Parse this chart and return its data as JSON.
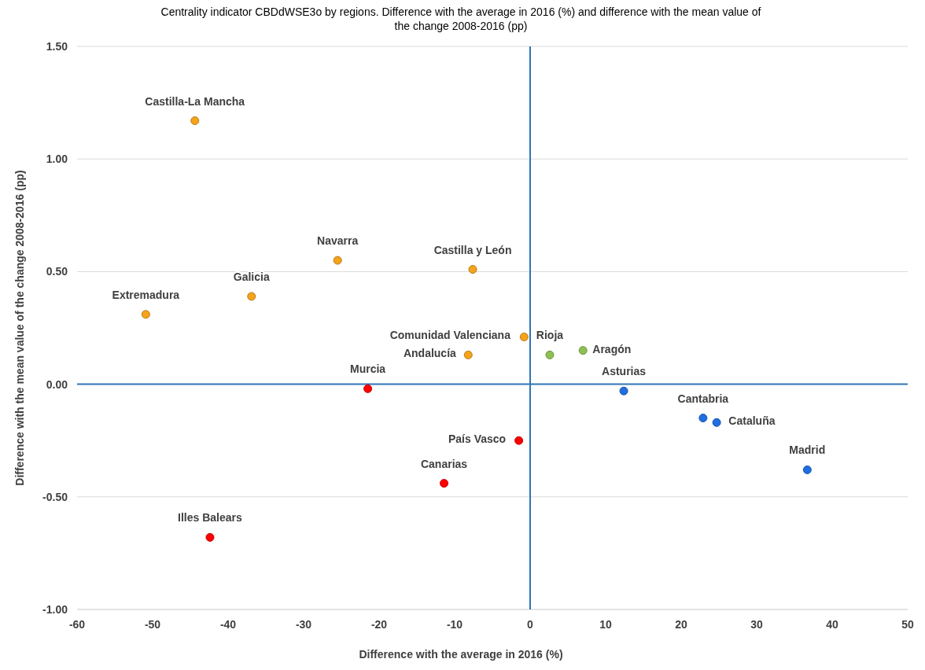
{
  "chart_data": {
    "type": "scatter",
    "title": "Centrality indicator CBDdWSE3o  by regions. Difference with the average in 2016 (%) and  difference with the mean value of the change 2008-2016 (pp)",
    "xlabel": "Difference with the average in 2016 (%)",
    "ylabel": "Difference with the mean value of the change 2008-2016 (pp)",
    "xlim": [
      -60,
      50
    ],
    "xticks": [
      -60,
      -50,
      -40,
      -30,
      -20,
      -10,
      0,
      10,
      20,
      30,
      40,
      50
    ],
    "ylim": [
      -1,
      1.5
    ],
    "yticks": [
      {
        "value": -1,
        "label": "-1.00"
      },
      {
        "value": -0.5,
        "label": "-0.50"
      },
      {
        "value": 0,
        "label": "0.00"
      },
      {
        "value": 0.5,
        "label": "0.50"
      },
      {
        "value": 1,
        "label": "1.00"
      },
      {
        "value": 1.5,
        "label": "1.50"
      }
    ],
    "grid": "y",
    "marker": "circle",
    "ref_lines": [
      {
        "axis": "x",
        "value": 0,
        "color": "#2e75b6"
      }
    ],
    "series": [
      {
        "color": "#f5a31a",
        "x": [
          -44.4,
          -25.5,
          -7.6,
          -36.9,
          -50.9,
          -0.8,
          -8.2
        ],
        "values": [
          1.17,
          0.55,
          0.51,
          0.39,
          0.31,
          0.21,
          0.13
        ]
      },
      {
        "color": "#8cc152",
        "x": [
          2.6,
          7.0
        ],
        "values": [
          0.13,
          0.15
        ]
      },
      {
        "color": "#ff0000",
        "x": [
          -21.5,
          -1.5,
          -11.4,
          -42.4
        ],
        "values": [
          -0.02,
          -0.25,
          -0.44,
          -0.68
        ]
      },
      {
        "color": "#1f6fe0",
        "x": [
          12.4,
          22.9,
          24.7,
          36.7
        ],
        "values": [
          -0.03,
          -0.15,
          -0.17,
          -0.38
        ]
      }
    ],
    "annotations": [
      {
        "text": "Castilla-La Mancha",
        "x": -44.4,
        "y": 1.17
      },
      {
        "text": "Navarra",
        "x": -25.5,
        "y": 0.55
      },
      {
        "text": "Castilla y León",
        "x": -7.6,
        "y": 0.51
      },
      {
        "text": "Galicia",
        "x": -36.9,
        "y": 0.39
      },
      {
        "text": "Extremadura",
        "x": -50.9,
        "y": 0.31
      },
      {
        "text": "Comunidad Valenciana",
        "x": -0.8,
        "y": 0.21
      },
      {
        "text": "Andalucía",
        "x": -8.2,
        "y": 0.13
      },
      {
        "text": "Rioja",
        "x": 2.6,
        "y": 0.13
      },
      {
        "text": "Aragón",
        "x": 7.0,
        "y": 0.15
      },
      {
        "text": "Murcia",
        "x": -21.5,
        "y": -0.02
      },
      {
        "text": "País Vasco",
        "x": -1.5,
        "y": -0.25
      },
      {
        "text": "Canarias",
        "x": -11.4,
        "y": -0.44
      },
      {
        "text": "Illes Balears",
        "x": -42.4,
        "y": -0.68
      },
      {
        "text": "Asturias",
        "x": 12.4,
        "y": -0.03
      },
      {
        "text": "Cantabria",
        "x": 22.9,
        "y": -0.15
      },
      {
        "text": "Cataluña",
        "x": 24.7,
        "y": -0.17
      },
      {
        "text": "Madrid",
        "x": 36.7,
        "y": -0.38
      }
    ]
  }
}
